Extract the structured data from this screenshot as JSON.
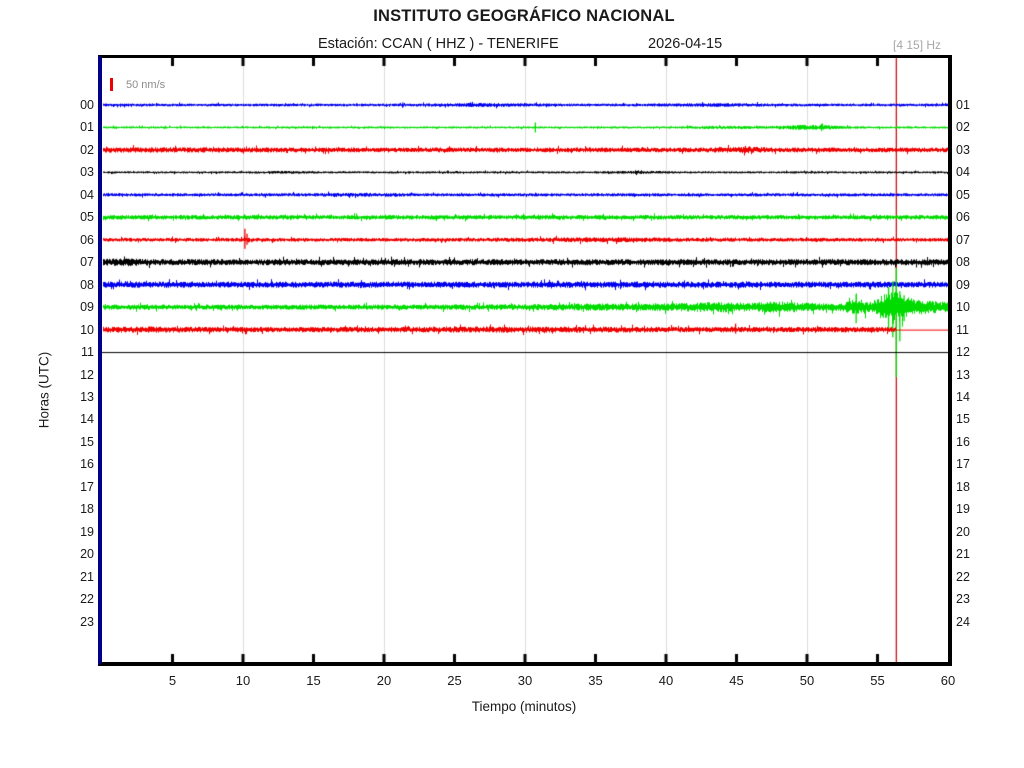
{
  "header": {
    "title": "INSTITUTO GEOGRÁFICO NACIONAL",
    "station_label": "Estación:  CCAN ( HHZ ) - TENERIFE",
    "date": "2026-04-15",
    "filter_band": "[4 15] Hz"
  },
  "legend": {
    "scale_label": "50 nm/s",
    "scale_color": "#ee0000"
  },
  "axes": {
    "y_label": "Horas (UTC)",
    "x_label": "Tiempo (minutos)",
    "x_ticks": [
      "5",
      "10",
      "15",
      "20",
      "25",
      "30",
      "35",
      "40",
      "45",
      "50",
      "55",
      "60"
    ],
    "left_hour_labels": [
      "00",
      "01",
      "02",
      "03",
      "04",
      "05",
      "06",
      "07",
      "08",
      "09",
      "10",
      "11",
      "12",
      "13",
      "14",
      "15",
      "16",
      "17",
      "18",
      "19",
      "20",
      "21",
      "22",
      "23"
    ],
    "right_hour_labels": [
      "01",
      "02",
      "03",
      "04",
      "05",
      "06",
      "07",
      "08",
      "09",
      "10",
      "11",
      "12",
      "13",
      "14",
      "15",
      "16",
      "17",
      "18",
      "19",
      "20",
      "21",
      "22",
      "23",
      "24"
    ]
  },
  "chart_data": {
    "type": "line",
    "subtype": "helicorder-seismogram",
    "station": "CCAN",
    "channel": "HHZ",
    "site": "TENERIFE",
    "date": "2026-04-15",
    "x_range_minutes": [
      0,
      60
    ],
    "minutes_per_row": 60,
    "grid_minutes": [
      10,
      20,
      30,
      40,
      50
    ],
    "tick_minutes": [
      5,
      10,
      15,
      20,
      25,
      30,
      35,
      40,
      45,
      50,
      55
    ],
    "cursor": {
      "minute": 56.3,
      "color": "#cc0000"
    },
    "colors": {
      "grid": "#dcdcdc",
      "frame": "#000000",
      "left_spine": "#00008B",
      "tick": "#000000"
    },
    "rows": [
      {
        "hour": "00",
        "right_label": "01",
        "color": "#0000ee",
        "base_amp": 1.4,
        "bumps": [
          [
            27,
            2.5,
            0.7
          ],
          [
            43,
            3,
            0.5
          ]
        ],
        "spikes": [
          [
            21.3,
            2.5,
            2.5
          ]
        ],
        "end_minute": 60
      },
      {
        "hour": "01",
        "right_label": "02",
        "color": "#00dc00",
        "base_amp": 1.1,
        "bumps": [
          [
            44,
            2,
            0.6
          ],
          [
            50.2,
            1.6,
            1.6
          ]
        ],
        "spikes": [
          [
            30.7,
            5,
            5
          ],
          [
            51,
            3.5,
            3.5
          ]
        ],
        "end_minute": 60
      },
      {
        "hour": "02",
        "right_label": "03",
        "color": "#ee0000",
        "base_amp": 2.4,
        "bumps": [
          [
            5,
            4,
            0.4
          ],
          [
            45.5,
            1.2,
            0.9
          ]
        ],
        "spikes": [
          [
            45.6,
            4,
            3
          ]
        ],
        "end_minute": 60
      },
      {
        "hour": "03",
        "right_label": "04",
        "color": "#000000",
        "base_amp": 1.1,
        "bumps": [
          [
            13,
            1.2,
            0.4
          ],
          [
            38,
            1.5,
            0.5
          ]
        ],
        "spikes": [],
        "end_minute": 60
      },
      {
        "hour": "04",
        "right_label": "05",
        "color": "#0000ee",
        "base_amp": 1.6,
        "bumps": [
          [
            18,
            2,
            0.4
          ]
        ],
        "spikes": [],
        "end_minute": 60
      },
      {
        "hour": "05",
        "right_label": "06",
        "color": "#00dc00",
        "base_amp": 2.3,
        "bumps": [],
        "spikes": [],
        "end_minute": 60
      },
      {
        "hour": "06",
        "right_label": "07",
        "color": "#ee0000",
        "base_amp": 1.9,
        "bumps": [
          [
            35,
            4,
            0.6
          ]
        ],
        "spikes": [
          [
            10.1,
            11,
            9
          ],
          [
            10.25,
            6,
            5
          ]
        ],
        "end_minute": 60
      },
      {
        "hour": "07",
        "right_label": "08",
        "color": "#000000",
        "base_amp": 3.1,
        "bumps": [
          [
            1.5,
            1,
            0.9
          ]
        ],
        "spikes": [],
        "end_minute": 60
      },
      {
        "hour": "08",
        "right_label": "09",
        "color": "#0000ee",
        "base_amp": 3.1,
        "bumps": [],
        "spikes": [],
        "end_minute": 60
      },
      {
        "hour": "09",
        "right_label": "10",
        "color": "#00dc00",
        "base_amp": 2.6,
        "bumps": [
          [
            38,
            6,
            1.2
          ],
          [
            43.5,
            1.5,
            2
          ],
          [
            47.5,
            1.3,
            2.4
          ],
          [
            50.5,
            2,
            1.5
          ],
          [
            53.5,
            0.5,
            5
          ],
          [
            55.9,
            0.8,
            13
          ],
          [
            57.6,
            1.2,
            3
          ],
          [
            59.3,
            1.5,
            2.2
          ]
        ],
        "spikes": [
          [
            53.45,
            13,
            16
          ],
          [
            55.75,
            20,
            24
          ],
          [
            56.05,
            26,
            30
          ],
          [
            56.3,
            39,
            70
          ],
          [
            56.55,
            16,
            34
          ],
          [
            56.85,
            12,
            14
          ]
        ],
        "end_minute": 60
      },
      {
        "hour": "10",
        "right_label": "11",
        "color": "#ee0000",
        "base_amp": 2.7,
        "bumps": [
          [
            3,
            2,
            0.5
          ],
          [
            30,
            6,
            0.4
          ]
        ],
        "spikes": [
          [
            44.9,
            6,
            4
          ]
        ],
        "end_minute": 56.3,
        "flat_after": true
      },
      {
        "hour": "11",
        "right_label": "12",
        "color": "#000000",
        "base_amp": 0,
        "bumps": [],
        "spikes": [],
        "end_minute": 60
      }
    ]
  }
}
